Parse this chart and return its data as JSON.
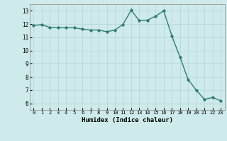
{
  "x": [
    0,
    1,
    2,
    3,
    4,
    5,
    6,
    7,
    8,
    9,
    10,
    11,
    12,
    13,
    14,
    15,
    16,
    17,
    18,
    19,
    20,
    21,
    22,
    23
  ],
  "y": [
    11.9,
    11.95,
    11.75,
    11.72,
    11.72,
    11.72,
    11.62,
    11.55,
    11.55,
    11.42,
    11.55,
    11.98,
    13.05,
    12.25,
    12.3,
    12.6,
    13.0,
    11.1,
    9.5,
    7.8,
    7.0,
    6.3,
    6.45,
    6.2
  ],
  "xlabel": "Humidex (Indice chaleur)",
  "xlim": [
    -0.5,
    23.5
  ],
  "ylim": [
    5.5,
    13.5
  ],
  "yticks": [
    6,
    7,
    8,
    9,
    10,
    11,
    12,
    13
  ],
  "xticks": [
    0,
    1,
    2,
    3,
    4,
    5,
    6,
    7,
    8,
    9,
    10,
    11,
    12,
    13,
    14,
    15,
    16,
    17,
    18,
    19,
    20,
    21,
    22,
    23
  ],
  "line_color": "#2e7d6e",
  "bg_color": "#ceeaea",
  "grid_color": "#b8d8d8",
  "marker": "D",
  "marker_size": 1.8,
  "linewidth": 1.0
}
